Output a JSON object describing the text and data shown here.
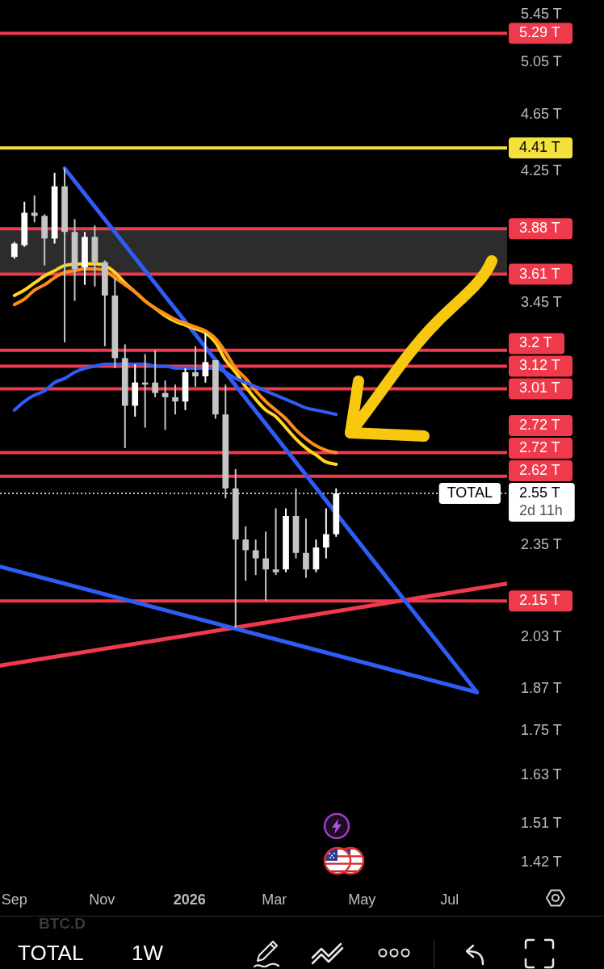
{
  "chart_data": {
    "type": "candlestick",
    "title": "TOTAL",
    "subtitle": "1W",
    "xlim": [
      "2025-08-22",
      "2026-08-10"
    ],
    "xticks": [
      {
        "value": "2025-09-01",
        "label": "Sep"
      },
      {
        "value": "2025-11-01",
        "label": "Nov"
      },
      {
        "value": "2026-01-01",
        "label": "2026"
      },
      {
        "value": "2026-03-01",
        "label": "Mar"
      },
      {
        "value": "2026-05-01",
        "label": "May"
      },
      {
        "value": "2026-07-01",
        "label": "Jul"
      }
    ],
    "ylim": [
      1.42,
      5.45
    ],
    "log": true,
    "yticks": [
      {
        "value": 5.45,
        "label": "5.45 T"
      },
      {
        "value": 5.05,
        "label": "5.05 T"
      },
      {
        "value": 4.65,
        "label": "4.65 T"
      },
      {
        "value": 4.25,
        "label": "4.25 T"
      },
      {
        "value": 3.45,
        "label": "3.45 T"
      },
      {
        "value": 2.35,
        "label": "2.35 T"
      },
      {
        "value": 2.03,
        "label": "2.03 T"
      },
      {
        "value": 1.87,
        "label": "1.87 T"
      },
      {
        "value": 1.75,
        "label": "1.75 T"
      },
      {
        "value": 1.63,
        "label": "1.63 T"
      },
      {
        "value": 1.51,
        "label": "1.51 T"
      },
      {
        "value": 1.42,
        "label": "1.42 T"
      }
    ],
    "bands": [
      {
        "axis": "y",
        "from": 3.61,
        "to": 3.88,
        "color": "#2c2c2c"
      }
    ],
    "ref_lines": [
      {
        "axis": "y",
        "value": 5.29,
        "label": "5.29 T",
        "color": "#ef3a4c"
      },
      {
        "axis": "y",
        "value": 4.41,
        "label": "4.41 T",
        "color": "#f5e13c"
      },
      {
        "axis": "y",
        "value": 3.88,
        "label": "3.88 T",
        "color": "#ef3a4c"
      },
      {
        "axis": "y",
        "value": 3.61,
        "label": "3.61 T",
        "color": "#ef3a4c"
      },
      {
        "axis": "y",
        "value": 3.2,
        "label": "3.2 T",
        "color": "#ef3a4c"
      },
      {
        "axis": "y",
        "value": 3.12,
        "label": "3.12 T",
        "color": "#ef3a4c"
      },
      {
        "axis": "y",
        "value": 3.01,
        "label": "3.01 T",
        "color": "#ef3a4c"
      },
      {
        "axis": "y",
        "value": 2.72,
        "label": "2.72 T",
        "color": "#ef3a4c"
      },
      {
        "axis": "y",
        "value": 2.62,
        "label": "2.62 T",
        "color": "#ef3a4c"
      },
      {
        "axis": "y",
        "value": 2.55,
        "label": "2.55 T",
        "color": "#ffffff",
        "line_style": "dotted"
      },
      {
        "axis": "y",
        "value": 2.15,
        "label": "2.15 T",
        "color": "#ef3a4c"
      }
    ],
    "annotations": [
      {
        "text": "2.72 T",
        "x": "2026-08-10",
        "y": 2.72
      },
      "2d 11h",
      "BTC.D"
    ],
    "series": [
      {
        "type": "line",
        "color": "#2f5cf5",
        "x": [
          "2025-09-01",
          "2025-09-08",
          "2025-09-15",
          "2025-09-22",
          "2025-09-29",
          "2025-10-06",
          "2025-10-13",
          "2025-10-20",
          "2025-10-27",
          "2025-11-03",
          "2025-11-10",
          "2025-11-17",
          "2025-11-24",
          "2025-12-01",
          "2025-12-08",
          "2025-12-15",
          "2025-12-22",
          "2025-12-29",
          "2026-01-05",
          "2026-01-12",
          "2026-01-19",
          "2026-01-26",
          "2026-02-02",
          "2026-02-09",
          "2026-02-16",
          "2026-02-23",
          "2026-03-02",
          "2026-03-09",
          "2026-03-16",
          "2026-03-23",
          "2026-03-30",
          "2026-04-06",
          "2026-04-13"
        ],
        "values": [
          2.91,
          2.95,
          2.98,
          3.0,
          3.04,
          3.06,
          3.09,
          3.11,
          3.12,
          3.13,
          3.13,
          3.13,
          3.13,
          3.13,
          3.12,
          3.12,
          3.11,
          3.11,
          3.11,
          null,
          3.11,
          3.09,
          3.06,
          3.04,
          3.02,
          3.0,
          2.98,
          2.96,
          2.94,
          2.92,
          2.91,
          2.9,
          2.89
        ]
      },
      {
        "type": "line",
        "color": "#ff8c1a",
        "x": [
          "2025-09-01",
          "2025-09-08",
          "2025-09-15",
          "2025-09-22",
          "2025-09-29",
          "2025-10-06",
          "2025-10-13",
          "2025-10-20",
          "2025-10-27",
          "2025-11-03",
          "2025-11-10",
          "2025-11-17",
          "2025-11-24",
          "2025-12-01",
          "2025-12-08",
          "2025-12-15",
          "2025-12-22",
          "2025-12-29",
          "2026-01-05",
          "2026-01-12",
          "2026-01-19",
          "2026-01-26",
          "2026-02-02",
          "2026-02-09",
          "2026-02-16",
          "2026-02-23",
          "2026-03-02",
          "2026-03-09",
          "2026-03-16",
          "2026-03-23",
          "2026-03-30",
          "2026-04-06",
          "2026-04-13"
        ],
        "values": [
          3.44,
          3.47,
          3.52,
          3.55,
          3.59,
          3.62,
          3.63,
          3.64,
          3.64,
          3.63,
          3.59,
          3.55,
          3.51,
          3.46,
          3.42,
          3.39,
          3.36,
          3.34,
          3.32,
          3.3,
          3.26,
          3.19,
          3.11,
          3.06,
          3.0,
          2.95,
          2.91,
          2.87,
          2.82,
          2.78,
          2.75,
          2.73,
          2.72
        ]
      },
      {
        "type": "line",
        "color": "#ffd422",
        "x": [
          "2025-09-01",
          "2025-09-08",
          "2025-09-15",
          "2025-09-22",
          "2025-09-29",
          "2025-10-06",
          "2025-10-13",
          "2025-10-20",
          "2025-10-27",
          "2025-11-03",
          "2025-11-10",
          "2025-11-17",
          "2025-11-24",
          "2025-12-01",
          "2025-12-08",
          "2025-12-15",
          "2025-12-22",
          "2025-12-29",
          "2026-01-05",
          "2026-01-12",
          "2026-01-19",
          "2026-01-26",
          "2026-02-02",
          "2026-02-09",
          "2026-02-16",
          "2026-02-23",
          "2026-03-02",
          "2026-03-09",
          "2026-03-16",
          "2026-03-23",
          "2026-03-30",
          "2026-04-06",
          "2026-04-13"
        ],
        "values": [
          3.49,
          3.52,
          3.56,
          3.6,
          3.63,
          3.66,
          null,
          3.67,
          3.67,
          3.66,
          3.62,
          3.56,
          3.51,
          3.46,
          3.42,
          3.38,
          3.35,
          3.33,
          3.31,
          3.29,
          3.24,
          3.15,
          3.09,
          3.02,
          2.96,
          2.91,
          2.88,
          2.83,
          2.78,
          2.74,
          2.71,
          2.68,
          2.67
        ]
      },
      {
        "type": "line",
        "color": "#2f5cf5",
        "x": [
          "2025-10-06",
          "2026-07-20"
        ],
        "values": [
          4.27,
          1.86
        ]
      },
      {
        "type": "line",
        "color": "#2f5cf5",
        "x": [
          "2025-08-22",
          "2026-07-20"
        ],
        "values": [
          2.27,
          1.86
        ]
      },
      {
        "type": "line",
        "color": "#ef3a4c",
        "x": [
          "2025-08-22",
          "2026-08-10"
        ],
        "values": [
          1.94,
          2.21
        ]
      },
      {
        "name": "TOTAL",
        "color": "#ffffff",
        "x": [
          "2025-09-01",
          "2025-09-08",
          "2025-09-15",
          "2025-09-22",
          "2025-09-29",
          "2025-10-06",
          "2025-10-13",
          "2025-10-20",
          "2025-10-27",
          "2025-11-03",
          "2025-11-10",
          "2025-11-17",
          "2025-11-24",
          "2025-12-01",
          "2025-12-08",
          "2025-12-15",
          "2025-12-22",
          "2025-12-29",
          "2026-01-05",
          "2026-01-12",
          "2026-01-19",
          "2026-01-26",
          "2026-02-02",
          "2026-02-09",
          "2026-02-16",
          "2026-02-23",
          "2026-03-02",
          "2026-03-09",
          "2026-03-16",
          "2026-03-23",
          "2026-03-30",
          "2026-04-06",
          "2026-04-13"
        ],
        "colors": [
          "#ffffff",
          "#ffffff",
          "#c4c4c4",
          "#c4c4c4",
          "#ffffff",
          "#c4c4c4",
          "#c4c4c4",
          "#ffffff",
          "#c4c4c4",
          "#c4c4c4",
          "#c4c4c4",
          "#c4c4c4",
          "#ffffff",
          "#c4c4c4",
          "#c4c4c4",
          "#c4c4c4",
          "#c4c4c4",
          "#ffffff",
          "#c4c4c4",
          "#ffffff",
          "#c4c4c4",
          "#c4c4c4",
          "#c4c4c4",
          "#c4c4c4",
          "#c4c4c4",
          "#c4c4c4",
          "#c4c4c4",
          "#ffffff",
          "#c4c4c4",
          "#c4c4c4",
          "#ffffff",
          "#ffffff",
          "#ffffff"
        ],
        "ohlc": [
          [
            3.71,
            3.8,
            3.7,
            3.79
          ],
          [
            3.78,
            4.05,
            3.77,
            3.98
          ],
          [
            3.98,
            4.09,
            3.92,
            3.96
          ],
          [
            3.96,
            3.97,
            3.66,
            3.82
          ],
          [
            3.82,
            4.24,
            3.79,
            4.15
          ],
          [
            4.15,
            4.27,
            3.24,
            3.86
          ],
          [
            3.86,
            3.94,
            3.46,
            3.64
          ],
          [
            3.65,
            3.86,
            3.55,
            3.83
          ],
          [
            3.83,
            3.9,
            3.54,
            3.68
          ],
          [
            3.68,
            3.69,
            3.22,
            3.49
          ],
          [
            3.49,
            3.59,
            3.11,
            3.16
          ],
          [
            3.16,
            3.23,
            2.74,
            2.93
          ],
          [
            2.93,
            3.13,
            2.88,
            3.04
          ],
          [
            3.04,
            3.18,
            2.83,
            3.03
          ],
          [
            3.04,
            3.2,
            2.97,
            2.99
          ],
          [
            2.99,
            3.05,
            2.82,
            2.97
          ],
          [
            2.97,
            3.03,
            2.89,
            2.95
          ],
          [
            2.95,
            3.11,
            2.91,
            3.09
          ],
          [
            3.09,
            3.22,
            3.02,
            3.07
          ],
          [
            3.07,
            3.29,
            3.04,
            3.14
          ],
          [
            3.15,
            3.15,
            2.87,
            2.89
          ],
          [
            2.89,
            3.03,
            2.53,
            2.57
          ],
          [
            2.57,
            2.65,
            2.06,
            2.37
          ],
          [
            2.37,
            2.42,
            2.22,
            2.33
          ],
          [
            2.33,
            2.37,
            2.24,
            2.3
          ],
          [
            2.3,
            2.4,
            2.15,
            2.26
          ],
          [
            2.26,
            2.49,
            2.24,
            2.25
          ],
          [
            2.26,
            2.49,
            2.25,
            2.46
          ],
          [
            2.46,
            2.57,
            2.3,
            2.32
          ],
          [
            2.32,
            2.45,
            2.23,
            2.26
          ],
          [
            2.26,
            2.37,
            2.25,
            2.34
          ],
          [
            2.34,
            2.49,
            2.3,
            2.39
          ],
          [
            2.39,
            2.57,
            2.38,
            2.55
          ]
        ]
      }
    ]
  }
}
